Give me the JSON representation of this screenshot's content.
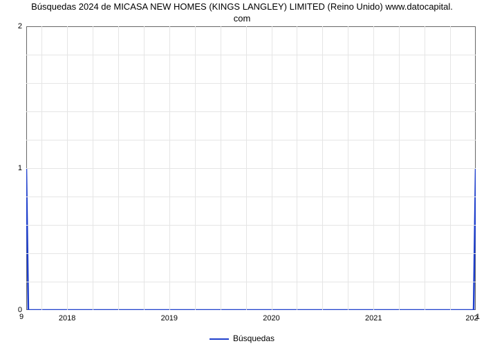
{
  "chart": {
    "type": "line",
    "title_line1": "Búsquedas 2024 de MICASA NEW HOMES (KINGS LANGLEY) LIMITED (Reino Unido) www.datocapital.",
    "title_line2": "com",
    "title_fontsize": 13,
    "title_color": "#000000",
    "background_color": "#ffffff",
    "plot_border_color": "#666666",
    "grid_color": "#e5e5e5",
    "tick_font_color": "#000000",
    "tick_fontsize": 11,
    "xlim": [
      2017.6,
      2022.0
    ],
    "ylim": [
      0,
      2
    ],
    "xtick_step": 1,
    "ytick_step": 1,
    "xgrid_minor_step": 0.25,
    "ygrid_minor_step": 0.2,
    "xticks": [
      2018,
      2019,
      2020,
      2021
    ],
    "xtick_labels": [
      "2018",
      "2019",
      "2020",
      "2021"
    ],
    "yticks": [
      0,
      1,
      2
    ],
    "ytick_labels": [
      "0",
      "1",
      "2"
    ],
    "clipped_labels": {
      "bottom_left": "9",
      "bottom_right": "1",
      "top_right_xtick": "202"
    },
    "series": {
      "label": "Búsquedas",
      "color": "#1E3FCC",
      "line_width": 2.5,
      "x": [
        2017.6,
        2017.62,
        2021.98,
        2022.0
      ],
      "y": [
        1.0,
        0.0,
        0.0,
        1.0
      ]
    },
    "legend_position": "bottom-center",
    "legend_fontsize": 12
  }
}
